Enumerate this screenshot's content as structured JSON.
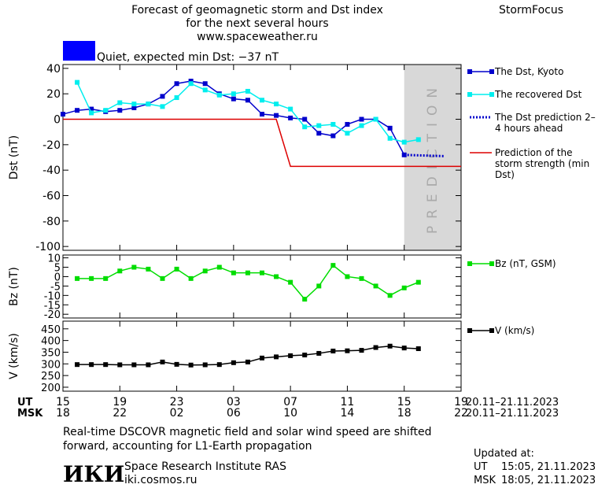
{
  "header": {
    "title_lines": [
      "Forecast of geomagnetic storm and Dst index",
      "for the next several hours",
      "www.spaceweather.ru"
    ],
    "brand": "StormFocus",
    "status": "Quiet, expected min Dst: −37 nT",
    "status_color": "#0000ff"
  },
  "chart_data": [
    {
      "type": "line",
      "ylabel": "Dst (nT)",
      "xlim": [
        0,
        28
      ],
      "ylim": [
        -103,
        43
      ],
      "yticks": [
        40,
        20,
        0,
        -20,
        -40,
        -60,
        -80,
        -100
      ],
      "shade_x": [
        24,
        28
      ],
      "shade_color": "#d8d8d8",
      "annotation": "PREDICTION",
      "series": [
        {
          "name": "The Dst, Kyoto",
          "color": "#0000cc",
          "marker": "square",
          "x": [
            0,
            1,
            2,
            3,
            4,
            5,
            6,
            7,
            8,
            9,
            10,
            11,
            12,
            13,
            14,
            15,
            16,
            17,
            18,
            19,
            20,
            21,
            22,
            23,
            24
          ],
          "values": [
            4,
            7,
            8,
            6,
            7,
            9,
            12,
            18,
            28,
            30,
            28,
            20,
            16,
            15,
            4,
            3,
            1,
            0,
            -11,
            -13,
            -4,
            0,
            0,
            -7,
            -28
          ]
        },
        {
          "name": "The recovered Dst",
          "color": "#00eeee",
          "marker": "square",
          "x": [
            1,
            2,
            3,
            4,
            5,
            6,
            7,
            8,
            9,
            10,
            11,
            12,
            13,
            14,
            15,
            16,
            17,
            18,
            19,
            20,
            21,
            22,
            23,
            24,
            25
          ],
          "values": [
            29,
            5,
            7,
            13,
            12,
            12,
            10,
            17,
            28,
            23,
            19,
            20,
            22,
            15,
            12,
            8,
            -6,
            -5,
            -4,
            -11,
            -5,
            0,
            -15,
            -18,
            -16
          ]
        },
        {
          "name": "The Dst prediction 2–4 hours ahead",
          "color": "#0000cc",
          "dash": "dotted",
          "x": [
            24,
            26.8
          ],
          "values": [
            -28,
            -29
          ]
        },
        {
          "name": "Prediction of the storm strength (min Dst)",
          "color": "#dd0000",
          "x": [
            0,
            15,
            16,
            28
          ],
          "values": [
            0,
            0,
            -37,
            -37
          ]
        }
      ]
    },
    {
      "type": "line",
      "ylabel": "Bz (nT)",
      "xlim": [
        0,
        28
      ],
      "ylim": [
        -22,
        11.5
      ],
      "yticks": [
        10,
        5,
        0,
        -5,
        -10,
        -15,
        -20
      ],
      "series": [
        {
          "name": "Bz (nT, GSM)",
          "color": "#00dd00",
          "marker": "square",
          "x": [
            1,
            2,
            3,
            4,
            5,
            6,
            7,
            8,
            9,
            10,
            11,
            12,
            13,
            14,
            15,
            16,
            17,
            18,
            19,
            20,
            21,
            22,
            23,
            24,
            25
          ],
          "values": [
            -1,
            -1,
            -1,
            3,
            5,
            4,
            -1,
            4,
            -1,
            3,
            5,
            2,
            2,
            2,
            0,
            -3,
            -12,
            -5,
            6,
            0,
            -1,
            -5,
            -10,
            -6,
            -3
          ]
        }
      ]
    },
    {
      "type": "line",
      "ylabel": "V (km/s)",
      "xlim": [
        0,
        28
      ],
      "ylim": [
        183,
        483
      ],
      "yticks": [
        450,
        400,
        350,
        300,
        250,
        200
      ],
      "xticks": [
        {
          "value": 0,
          "label": "15"
        },
        {
          "value": 4,
          "label": "19"
        },
        {
          "value": 8,
          "label": "23"
        },
        {
          "value": 12,
          "label": "03"
        },
        {
          "value": 16,
          "label": "07"
        },
        {
          "value": 20,
          "label": "11"
        },
        {
          "value": 24,
          "label": "15"
        },
        {
          "value": 28,
          "label": "19"
        }
      ],
      "msk_labels": [
        "18",
        "22",
        "02",
        "06",
        "10",
        "14",
        "18",
        "22"
      ],
      "series": [
        {
          "name": "V (km/s)",
          "color": "#000000",
          "marker": "square",
          "x": [
            1,
            2,
            3,
            4,
            5,
            6,
            7,
            8,
            9,
            10,
            11,
            12,
            13,
            14,
            15,
            16,
            17,
            18,
            19,
            20,
            21,
            22,
            23,
            24,
            25
          ],
          "values": [
            297,
            297,
            297,
            296,
            296,
            296,
            308,
            298,
            295,
            296,
            297,
            305,
            308,
            325,
            330,
            335,
            338,
            345,
            355,
            356,
            358,
            370,
            376,
            368,
            365
          ]
        }
      ]
    }
  ],
  "time_axis": {
    "ut_label": "UT",
    "msk_label": "MSK",
    "ut_dates": "20.11–21.11.2023",
    "msk_dates": "20.11–21.11.2023"
  },
  "footer": {
    "note_lines": [
      "Real-time DSCOVR magnetic field and solar wind speed are shifted",
      "forward, accounting for L1-Earth propagation"
    ],
    "logo": "ИКИ",
    "institute": "Space Research Institute RAS",
    "site": "iki.cosmos.ru",
    "updated_title": "Updated at:",
    "updated": [
      [
        "UT",
        "15:05, 21.11.2023"
      ],
      [
        "MSK",
        "18:05, 21.11.2023"
      ]
    ]
  }
}
